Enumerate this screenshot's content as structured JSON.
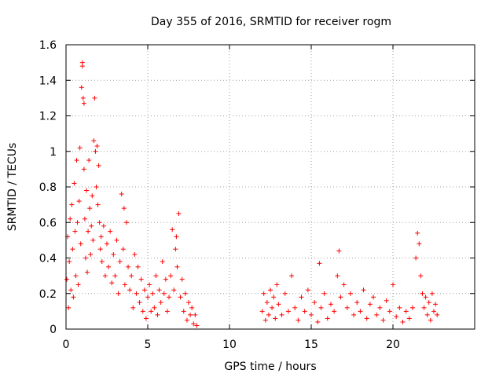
{
  "chart_data": {
    "type": "scatter",
    "title": "Day 355 of 2016, SRMTID for receiver rogm",
    "xlabel": "GPS time / hours",
    "ylabel": "SRMTID / TECUs",
    "xlim": [
      0,
      25
    ],
    "ylim": [
      0,
      1.6
    ],
    "xticks": [
      0,
      5,
      10,
      15,
      20
    ],
    "yticks": [
      0,
      0.2,
      0.4,
      0.6,
      0.8,
      1,
      1.2,
      1.4,
      1.6
    ],
    "xtick_labels": [
      "0",
      "5",
      "10",
      "15",
      "20"
    ],
    "ytick_labels": [
      "0",
      "0.2",
      "0.4",
      "0.6",
      "0.8",
      "1",
      "1.2",
      "1.4",
      "1.6"
    ],
    "grid": true,
    "marker": "+",
    "marker_color": "#ff0000",
    "series": [
      {
        "name": "SRMTID",
        "points": [
          [
            0.05,
            0.28
          ],
          [
            0.1,
            0.52
          ],
          [
            0.15,
            0.12
          ],
          [
            0.2,
            0.38
          ],
          [
            0.25,
            0.62
          ],
          [
            0.3,
            0.22
          ],
          [
            0.35,
            0.7
          ],
          [
            0.4,
            0.45
          ],
          [
            0.45,
            0.18
          ],
          [
            0.5,
            0.82
          ],
          [
            0.55,
            0.55
          ],
          [
            0.6,
            0.3
          ],
          [
            0.65,
            0.95
          ],
          [
            0.7,
            0.6
          ],
          [
            0.75,
            0.25
          ],
          [
            0.8,
            0.72
          ],
          [
            0.85,
            1.02
          ],
          [
            0.9,
            0.48
          ],
          [
            0.95,
            1.36
          ],
          [
            1.0,
            1.5
          ],
          [
            1.0,
            1.48
          ],
          [
            1.05,
            1.3
          ],
          [
            1.1,
            1.27
          ],
          [
            1.1,
            0.9
          ],
          [
            1.15,
            0.62
          ],
          [
            1.2,
            0.4
          ],
          [
            1.25,
            0.78
          ],
          [
            1.3,
            0.32
          ],
          [
            1.35,
            0.55
          ],
          [
            1.4,
            0.95
          ],
          [
            1.45,
            0.68
          ],
          [
            1.5,
            0.42
          ],
          [
            1.55,
            0.58
          ],
          [
            1.6,
            0.75
          ],
          [
            1.65,
            0.5
          ],
          [
            1.7,
            1.06
          ],
          [
            1.75,
            1.3
          ],
          [
            1.8,
            1.0
          ],
          [
            1.85,
            0.8
          ],
          [
            1.9,
            1.03
          ],
          [
            1.95,
            0.7
          ],
          [
            2.0,
            0.92
          ],
          [
            2.05,
            0.6
          ],
          [
            2.1,
            0.45
          ],
          [
            2.15,
            0.52
          ],
          [
            2.2,
            0.38
          ],
          [
            2.3,
            0.58
          ],
          [
            2.4,
            0.3
          ],
          [
            2.5,
            0.48
          ],
          [
            2.6,
            0.35
          ],
          [
            2.7,
            0.55
          ],
          [
            2.8,
            0.26
          ],
          [
            2.9,
            0.42
          ],
          [
            3.0,
            0.3
          ],
          [
            3.1,
            0.5
          ],
          [
            3.2,
            0.2
          ],
          [
            3.3,
            0.38
          ],
          [
            3.4,
            0.76
          ],
          [
            3.5,
            0.45
          ],
          [
            3.55,
            0.68
          ],
          [
            3.6,
            0.25
          ],
          [
            3.7,
            0.6
          ],
          [
            3.8,
            0.35
          ],
          [
            3.9,
            0.22
          ],
          [
            4.0,
            0.3
          ],
          [
            4.1,
            0.12
          ],
          [
            4.2,
            0.42
          ],
          [
            4.3,
            0.2
          ],
          [
            4.4,
            0.35
          ],
          [
            4.5,
            0.15
          ],
          [
            4.6,
            0.28
          ],
          [
            4.7,
            0.1
          ],
          [
            4.8,
            0.22
          ],
          [
            4.9,
            0.06
          ],
          [
            5.0,
            0.18
          ],
          [
            5.1,
            0.25
          ],
          [
            5.2,
            0.1
          ],
          [
            5.3,
            0.2
          ],
          [
            5.4,
            0.12
          ],
          [
            5.5,
            0.3
          ],
          [
            5.6,
            0.08
          ],
          [
            5.7,
            0.22
          ],
          [
            5.8,
            0.15
          ],
          [
            5.9,
            0.38
          ],
          [
            6.0,
            0.2
          ],
          [
            6.1,
            0.28
          ],
          [
            6.2,
            0.1
          ],
          [
            6.3,
            0.18
          ],
          [
            6.4,
            0.3
          ],
          [
            6.5,
            0.56
          ],
          [
            6.6,
            0.22
          ],
          [
            6.7,
            0.45
          ],
          [
            6.75,
            0.52
          ],
          [
            6.8,
            0.35
          ],
          [
            6.9,
            0.65
          ],
          [
            7.0,
            0.18
          ],
          [
            7.1,
            0.28
          ],
          [
            7.2,
            0.1
          ],
          [
            7.3,
            0.2
          ],
          [
            7.4,
            0.05
          ],
          [
            7.5,
            0.15
          ],
          [
            7.6,
            0.08
          ],
          [
            7.7,
            0.12
          ],
          [
            7.8,
            0.03
          ],
          [
            7.9,
            0.08
          ],
          [
            8.0,
            0.02
          ],
          [
            12.0,
            0.1
          ],
          [
            12.1,
            0.2
          ],
          [
            12.2,
            0.05
          ],
          [
            12.3,
            0.15
          ],
          [
            12.4,
            0.08
          ],
          [
            12.5,
            0.22
          ],
          [
            12.6,
            0.12
          ],
          [
            12.7,
            0.18
          ],
          [
            12.8,
            0.06
          ],
          [
            12.9,
            0.25
          ],
          [
            13.0,
            0.14
          ],
          [
            13.2,
            0.08
          ],
          [
            13.4,
            0.2
          ],
          [
            13.6,
            0.1
          ],
          [
            13.8,
            0.3
          ],
          [
            14.0,
            0.12
          ],
          [
            14.2,
            0.05
          ],
          [
            14.4,
            0.18
          ],
          [
            14.6,
            0.1
          ],
          [
            14.8,
            0.22
          ],
          [
            15.0,
            0.08
          ],
          [
            15.2,
            0.15
          ],
          [
            15.4,
            0.04
          ],
          [
            15.5,
            0.37
          ],
          [
            15.6,
            0.12
          ],
          [
            15.8,
            0.2
          ],
          [
            16.0,
            0.06
          ],
          [
            16.2,
            0.14
          ],
          [
            16.4,
            0.1
          ],
          [
            16.6,
            0.3
          ],
          [
            16.7,
            0.44
          ],
          [
            16.8,
            0.18
          ],
          [
            17.0,
            0.25
          ],
          [
            17.2,
            0.12
          ],
          [
            17.4,
            0.2
          ],
          [
            17.6,
            0.08
          ],
          [
            17.8,
            0.15
          ],
          [
            18.0,
            0.1
          ],
          [
            18.2,
            0.22
          ],
          [
            18.4,
            0.06
          ],
          [
            18.6,
            0.14
          ],
          [
            18.8,
            0.18
          ],
          [
            19.0,
            0.08
          ],
          [
            19.2,
            0.12
          ],
          [
            19.4,
            0.05
          ],
          [
            19.6,
            0.16
          ],
          [
            19.8,
            0.1
          ],
          [
            20.0,
            0.25
          ],
          [
            20.2,
            0.07
          ],
          [
            20.4,
            0.12
          ],
          [
            20.6,
            0.04
          ],
          [
            20.8,
            0.1
          ],
          [
            21.0,
            0.06
          ],
          [
            21.2,
            0.12
          ],
          [
            21.4,
            0.4
          ],
          [
            21.5,
            0.54
          ],
          [
            21.6,
            0.48
          ],
          [
            21.7,
            0.3
          ],
          [
            21.8,
            0.2
          ],
          [
            21.9,
            0.12
          ],
          [
            22.0,
            0.18
          ],
          [
            22.1,
            0.08
          ],
          [
            22.2,
            0.15
          ],
          [
            22.3,
            0.05
          ],
          [
            22.4,
            0.2
          ],
          [
            22.5,
            0.1
          ],
          [
            22.6,
            0.14
          ],
          [
            22.7,
            0.08
          ]
        ]
      }
    ]
  }
}
